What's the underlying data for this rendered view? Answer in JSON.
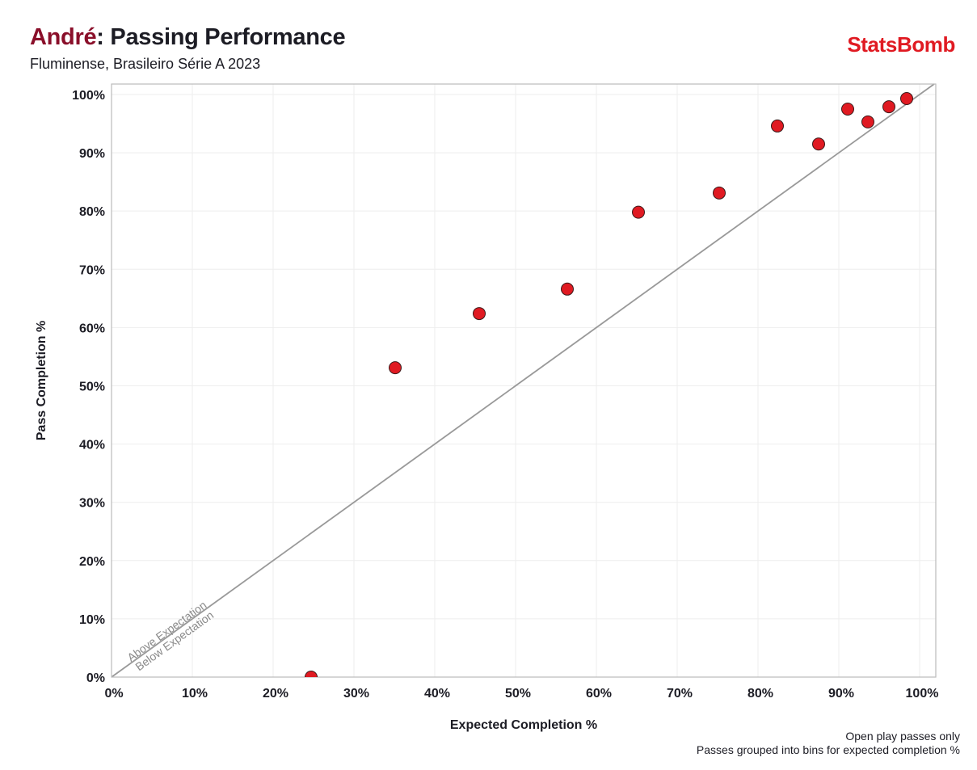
{
  "header": {
    "player": "André",
    "title_rest": ": Passing Performance",
    "subtitle": "Fluminense, Brasileiro Série A 2023",
    "logo": "StatsBomb"
  },
  "footnotes": [
    "Open play passes only",
    "Passes grouped into bins for expected completion %"
  ],
  "colors": {
    "player": "#8a0f2a",
    "logo": "#e01a22",
    "point_fill": "#e01a22",
    "point_stroke": "#3a1a1a",
    "reference_line": "#999999",
    "grid": "#eeeeee",
    "frame": "#bbbbbb"
  },
  "chart_data": {
    "type": "scatter",
    "title": "André: Passing Performance",
    "subtitle": "Fluminense, Brasileiro Série A 2023",
    "xlabel": "Expected Completion %",
    "ylabel": "Pass Completion %",
    "xlim": [
      0,
      102
    ],
    "ylim": [
      0,
      101.8
    ],
    "grid": true,
    "x_ticks": [
      0,
      10,
      20,
      30,
      40,
      50,
      60,
      70,
      80,
      90,
      100
    ],
    "x_tick_labels": [
      "0%",
      "10%",
      "20%",
      "30%",
      "40%",
      "50%",
      "60%",
      "70%",
      "80%",
      "90%",
      "100%"
    ],
    "y_ticks": [
      0,
      10,
      20,
      30,
      40,
      50,
      60,
      70,
      80,
      90,
      100
    ],
    "y_tick_labels": [
      "0%",
      "10%",
      "20%",
      "30%",
      "40%",
      "50%",
      "60%",
      "70%",
      "80%",
      "90%",
      "100%"
    ],
    "reference_line": {
      "type": "y=x",
      "label_above": "Above Expectation",
      "label_below": "Below Expectation"
    },
    "points": [
      {
        "x": 24.7,
        "y": 0.0
      },
      {
        "x": 35.1,
        "y": 53.1
      },
      {
        "x": 45.5,
        "y": 62.4
      },
      {
        "x": 56.4,
        "y": 66.6
      },
      {
        "x": 65.2,
        "y": 79.8
      },
      {
        "x": 75.2,
        "y": 83.1
      },
      {
        "x": 82.4,
        "y": 94.6
      },
      {
        "x": 87.5,
        "y": 91.5
      },
      {
        "x": 91.1,
        "y": 97.5
      },
      {
        "x": 93.6,
        "y": 95.3
      },
      {
        "x": 96.2,
        "y": 97.9
      },
      {
        "x": 98.4,
        "y": 99.3
      }
    ]
  }
}
